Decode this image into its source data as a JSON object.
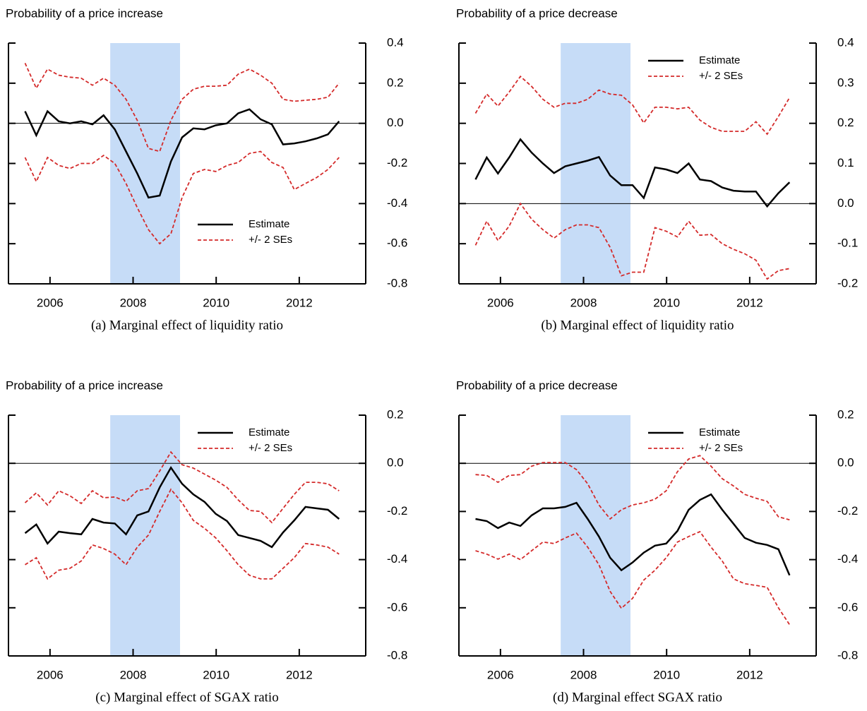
{
  "chart_data": [
    {
      "type": "line",
      "title": "Probability of a price increase",
      "caption": "(a) Marginal effect of liquidity ratio",
      "x": [
        2005.4,
        2005.67,
        2005.94,
        2006.21,
        2006.48,
        2006.75,
        2007.02,
        2007.29,
        2007.56,
        2007.83,
        2008.1,
        2008.37,
        2008.64,
        2008.91,
        2009.18,
        2009.45,
        2009.72,
        2009.99,
        2010.26,
        2010.53,
        2010.8,
        2011.07,
        2011.34,
        2011.61,
        2011.88,
        2012.15,
        2012.42,
        2012.69,
        2012.96
      ],
      "series": [
        {
          "name": "Estimate",
          "color": "#000000",
          "values": [
            0.06,
            -0.06,
            0.06,
            0.01,
            0.0,
            0.01,
            -0.005,
            0.04,
            -0.03,
            -0.14,
            -0.25,
            -0.37,
            -0.36,
            -0.19,
            -0.07,
            -0.025,
            -0.03,
            -0.01,
            0.0,
            0.05,
            0.07,
            0.02,
            -0.005,
            -0.105,
            -0.1,
            -0.09,
            -0.075,
            -0.055,
            0.01
          ]
        },
        {
          "name": "+/- 2 SEs",
          "color": "#d42a2a",
          "upper": [
            0.3,
            0.175,
            0.27,
            0.24,
            0.23,
            0.225,
            0.19,
            0.225,
            0.19,
            0.12,
            0.015,
            -0.125,
            -0.14,
            0.015,
            0.12,
            0.17,
            0.185,
            0.185,
            0.19,
            0.245,
            0.27,
            0.24,
            0.2,
            0.12,
            0.11,
            0.115,
            0.12,
            0.13,
            0.2
          ],
          "lower": [
            -0.17,
            -0.29,
            -0.17,
            -0.21,
            -0.225,
            -0.2,
            -0.2,
            -0.16,
            -0.2,
            -0.3,
            -0.42,
            -0.53,
            -0.6,
            -0.55,
            -0.37,
            -0.25,
            -0.23,
            -0.24,
            -0.21,
            -0.195,
            -0.15,
            -0.14,
            -0.195,
            -0.22,
            -0.33,
            -0.3,
            -0.27,
            -0.23,
            -0.17
          ]
        }
      ],
      "xlim": [
        2005,
        2013.6
      ],
      "xticks": [
        2006,
        2008,
        2010,
        2012
      ],
      "ylim": [
        -0.8,
        0.4
      ],
      "yticks": [
        0.4,
        0.2,
        {
          "value": 0,
          "label": "0.0"
        },
        -0.2,
        -0.4,
        -0.6,
        -0.8
      ],
      "hline": 0,
      "shade": {
        "x": [
          2007.45,
          2009.13
        ],
        "color": "#c6dcf7"
      },
      "legend": "lower right"
    },
    {
      "type": "line",
      "title": "Probability of a price decrease",
      "caption": "(b) Marginal effect of liquidity ratio",
      "x": [
        2005.4,
        2005.67,
        2005.94,
        2006.21,
        2006.48,
        2006.75,
        2007.02,
        2007.29,
        2007.56,
        2007.83,
        2008.1,
        2008.37,
        2008.64,
        2008.91,
        2009.18,
        2009.45,
        2009.72,
        2009.99,
        2010.26,
        2010.53,
        2010.8,
        2011.07,
        2011.34,
        2011.61,
        2011.88,
        2012.15,
        2012.42,
        2012.69,
        2012.96
      ],
      "series": [
        {
          "name": "Estimate",
          "color": "#000000",
          "values": [
            0.06,
            0.115,
            0.075,
            0.115,
            0.16,
            0.127,
            0.1,
            0.076,
            0.093,
            0.1,
            0.107,
            0.116,
            0.07,
            0.046,
            0.046,
            0.014,
            0.09,
            0.085,
            0.076,
            0.1,
            0.06,
            0.056,
            0.04,
            0.032,
            0.03,
            0.03,
            -0.007,
            0.026,
            0.053
          ]
        },
        {
          "name": "+/- 2 SEs",
          "color": "#d42a2a",
          "upper": [
            0.225,
            0.273,
            0.243,
            0.278,
            0.317,
            0.292,
            0.26,
            0.24,
            0.25,
            0.25,
            0.26,
            0.283,
            0.273,
            0.27,
            0.246,
            0.201,
            0.24,
            0.24,
            0.236,
            0.24,
            0.208,
            0.19,
            0.18,
            0.18,
            0.18,
            0.204,
            0.173,
            0.217,
            0.264
          ],
          "lower": [
            -0.104,
            -0.044,
            -0.092,
            -0.056,
            0.0,
            -0.039,
            -0.065,
            -0.086,
            -0.065,
            -0.053,
            -0.053,
            -0.06,
            -0.109,
            -0.18,
            -0.171,
            -0.171,
            -0.06,
            -0.069,
            -0.083,
            -0.044,
            -0.079,
            -0.077,
            -0.1,
            -0.114,
            -0.125,
            -0.141,
            -0.188,
            -0.167,
            -0.162
          ]
        }
      ],
      "xlim": [
        2005,
        2013.6
      ],
      "xticks": [
        2006,
        2008,
        2010,
        2012
      ],
      "ylim": [
        -0.2,
        0.4
      ],
      "yticks": [
        0.4,
        0.3,
        0.2,
        0.1,
        {
          "value": 0,
          "label": "0.0"
        },
        -0.1,
        -0.2
      ],
      "hline": 0,
      "shade": {
        "x": [
          2007.45,
          2009.13
        ],
        "color": "#c6dcf7"
      },
      "legend": "upper right"
    },
    {
      "type": "line",
      "title": "Probability of a price increase",
      "caption": "(c) Marginal effect of SGAX ratio",
      "x": [
        2005.4,
        2005.67,
        2005.94,
        2006.21,
        2006.48,
        2006.75,
        2007.02,
        2007.29,
        2007.56,
        2007.83,
        2008.1,
        2008.37,
        2008.64,
        2008.91,
        2009.18,
        2009.45,
        2009.72,
        2009.99,
        2010.26,
        2010.53,
        2010.8,
        2011.07,
        2011.34,
        2011.61,
        2011.88,
        2012.15,
        2012.42,
        2012.69,
        2012.96
      ],
      "series": [
        {
          "name": "Estimate",
          "color": "#000000",
          "values": [
            -0.29,
            -0.254,
            -0.333,
            -0.284,
            -0.29,
            -0.295,
            -0.231,
            -0.246,
            -0.25,
            -0.295,
            -0.216,
            -0.2,
            -0.1,
            -0.018,
            -0.085,
            -0.129,
            -0.16,
            -0.21,
            -0.24,
            -0.298,
            -0.31,
            -0.322,
            -0.348,
            -0.287,
            -0.237,
            -0.181,
            -0.187,
            -0.193,
            -0.231
          ]
        },
        {
          "name": "+/- 2 SEs",
          "color": "#d42a2a",
          "upper": [
            -0.164,
            -0.123,
            -0.173,
            -0.114,
            -0.135,
            -0.167,
            -0.114,
            -0.143,
            -0.14,
            -0.158,
            -0.114,
            -0.105,
            -0.032,
            0.047,
            -0.006,
            -0.02,
            -0.045,
            -0.07,
            -0.1,
            -0.152,
            -0.196,
            -0.2,
            -0.246,
            -0.187,
            -0.129,
            -0.079,
            -0.079,
            -0.085,
            -0.114
          ],
          "lower": [
            -0.421,
            -0.392,
            -0.48,
            -0.444,
            -0.436,
            -0.406,
            -0.339,
            -0.354,
            -0.377,
            -0.421,
            -0.348,
            -0.298,
            -0.2,
            -0.108,
            -0.164,
            -0.237,
            -0.27,
            -0.31,
            -0.363,
            -0.421,
            -0.465,
            -0.48,
            -0.48,
            -0.436,
            -0.392,
            -0.333,
            -0.339,
            -0.348,
            -0.377
          ]
        }
      ],
      "xlim": [
        2005,
        2013.6
      ],
      "xticks": [
        2006,
        2008,
        2010,
        2012
      ],
      "ylim": [
        -0.8,
        0.2
      ],
      "yticks": [
        0.2,
        {
          "value": 0,
          "label": "0.0"
        },
        -0.2,
        -0.4,
        -0.6,
        -0.8
      ],
      "hline": 0,
      "shade": {
        "x": [
          2007.45,
          2009.13
        ],
        "color": "#c6dcf7"
      },
      "legend": "upper right"
    },
    {
      "type": "line",
      "title": "Probability of a price decrease",
      "caption": "(d) Marginal effect SGAX ratio",
      "x": [
        2005.4,
        2005.67,
        2005.94,
        2006.21,
        2006.48,
        2006.75,
        2007.02,
        2007.29,
        2007.56,
        2007.83,
        2008.1,
        2008.37,
        2008.64,
        2008.91,
        2009.18,
        2009.45,
        2009.72,
        2009.99,
        2010.26,
        2010.53,
        2010.8,
        2011.07,
        2011.34,
        2011.61,
        2011.88,
        2012.15,
        2012.42,
        2012.69,
        2012.96
      ],
      "series": [
        {
          "name": "Estimate",
          "color": "#000000",
          "values": [
            -0.231,
            -0.24,
            -0.269,
            -0.246,
            -0.26,
            -0.216,
            -0.187,
            -0.187,
            -0.181,
            -0.164,
            -0.231,
            -0.304,
            -0.392,
            -0.444,
            -0.412,
            -0.371,
            -0.342,
            -0.333,
            -0.281,
            -0.193,
            -0.152,
            -0.129,
            -0.193,
            -0.251,
            -0.31,
            -0.33,
            -0.339,
            -0.357,
            -0.465
          ]
        },
        {
          "name": "+/- 2 SEs",
          "color": "#d42a2a",
          "upper": [
            -0.047,
            -0.05,
            -0.079,
            -0.05,
            -0.047,
            -0.012,
            0.003,
            0.003,
            0.003,
            -0.026,
            -0.085,
            -0.173,
            -0.231,
            -0.193,
            -0.173,
            -0.164,
            -0.149,
            -0.114,
            -0.035,
            0.018,
            0.032,
            -0.012,
            -0.064,
            -0.094,
            -0.129,
            -0.145,
            -0.158,
            -0.222,
            -0.235
          ],
          "lower": [
            -0.363,
            -0.377,
            -0.398,
            -0.377,
            -0.4,
            -0.363,
            -0.327,
            -0.333,
            -0.31,
            -0.29,
            -0.348,
            -0.421,
            -0.532,
            -0.602,
            -0.561,
            -0.485,
            -0.444,
            -0.392,
            -0.327,
            -0.304,
            -0.284,
            -0.348,
            -0.406,
            -0.48,
            -0.5,
            -0.507,
            -0.515,
            -0.6,
            -0.67
          ]
        }
      ],
      "xlim": [
        2005,
        2013.6
      ],
      "xticks": [
        2006,
        2008,
        2010,
        2012
      ],
      "ylim": [
        -0.8,
        0.2
      ],
      "yticks": [
        0.2,
        {
          "value": 0,
          "label": "0.0"
        },
        -0.2,
        -0.4,
        -0.6,
        -0.8
      ],
      "hline": 0,
      "shade": {
        "x": [
          2007.45,
          2009.13
        ],
        "color": "#c6dcf7"
      },
      "legend": "upper right"
    }
  ]
}
